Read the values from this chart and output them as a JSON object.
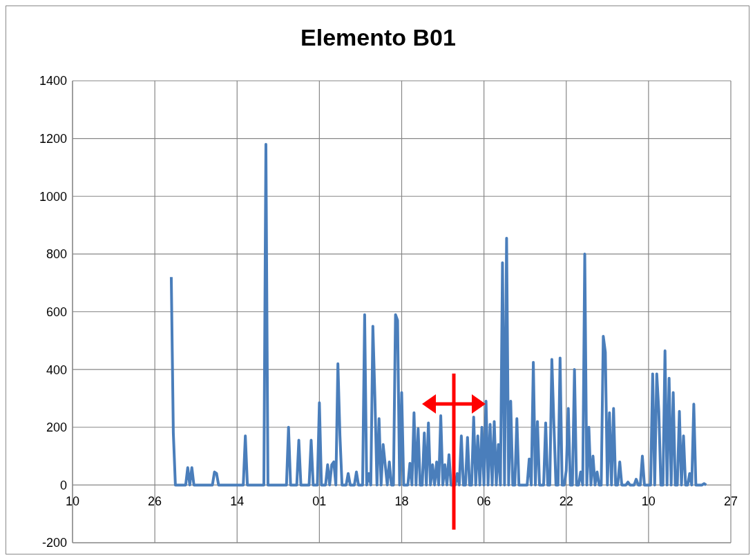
{
  "chart_data": {
    "type": "line",
    "title": "Elemento B01",
    "categories": [
      "10",
      null,
      null,
      null,
      null,
      null,
      null,
      null,
      null,
      null,
      null,
      null,
      null,
      null,
      null,
      null,
      null,
      null,
      null,
      null,
      null,
      null,
      null,
      null,
      null,
      null,
      null,
      null,
      null,
      null,
      null,
      null,
      null,
      null,
      null,
      null,
      null,
      null,
      null,
      null,
      "26",
      null,
      null,
      null,
      null,
      null,
      null,
      null,
      null,
      null,
      null,
      null,
      null,
      null,
      null,
      null,
      null,
      null,
      null,
      null,
      null,
      null,
      null,
      null,
      null,
      null,
      null,
      null,
      null,
      null,
      null,
      null,
      null,
      null,
      null,
      null,
      null,
      null,
      null,
      null,
      "14",
      null,
      null,
      null,
      null,
      null,
      null,
      null,
      null,
      null,
      null,
      null,
      null,
      null,
      null,
      null,
      null,
      null,
      null,
      null,
      null,
      null,
      null,
      null,
      null,
      null,
      null,
      null,
      null,
      null,
      null,
      null,
      null,
      null,
      null,
      null,
      null,
      null,
      null,
      null,
      "01",
      null,
      null,
      null,
      null,
      null,
      null,
      null,
      null,
      null,
      null,
      null,
      null,
      null,
      null,
      null,
      null,
      null,
      null,
      null,
      null,
      null,
      null,
      null,
      null,
      null,
      null,
      null,
      null,
      null,
      null,
      null,
      null,
      null,
      null,
      null,
      null,
      null,
      null,
      null,
      "18",
      null,
      null,
      null,
      null,
      null,
      null,
      null,
      null,
      null,
      null,
      null,
      null,
      null,
      null,
      null,
      null,
      null,
      null,
      null,
      null,
      null,
      null,
      null,
      null,
      null,
      null,
      null,
      null,
      null,
      null,
      null,
      null,
      null,
      null,
      null,
      null,
      null,
      null,
      null,
      "06",
      null,
      null,
      null,
      null,
      null,
      null,
      null,
      null,
      null,
      null,
      null,
      null,
      null,
      null,
      null,
      null,
      null,
      null,
      null,
      null,
      null,
      null,
      null,
      null,
      null,
      null,
      null,
      null,
      null,
      null,
      null,
      null,
      null,
      null,
      null,
      null,
      null,
      null,
      null,
      "22",
      null,
      null,
      null,
      null,
      null,
      null,
      null,
      null,
      null,
      null,
      null,
      null,
      null,
      null,
      null,
      null,
      null,
      null,
      null,
      null,
      null,
      null,
      null,
      null,
      null,
      null,
      null,
      null,
      null,
      null,
      null,
      null,
      null,
      null,
      null,
      null,
      null,
      null,
      null,
      "10",
      null,
      null,
      null,
      null,
      null,
      null,
      null,
      null,
      null,
      null,
      null,
      null,
      null,
      null,
      null,
      null,
      null,
      null,
      null,
      null,
      null,
      null,
      null,
      null,
      null,
      null,
      null,
      null,
      null,
      null,
      null,
      null,
      null,
      null,
      null,
      null,
      null,
      null,
      null,
      "27"
    ],
    "ylim": [
      -200,
      1400
    ],
    "yticks": [
      -200,
      0,
      200,
      400,
      600,
      800,
      1000,
      1200,
      1400
    ],
    "grid": true,
    "marker": "none",
    "line_style": "solid",
    "series": [
      {
        "color": "#4a7ebb",
        "values": [
          null,
          null,
          null,
          null,
          null,
          null,
          null,
          null,
          null,
          null,
          null,
          null,
          null,
          null,
          null,
          null,
          null,
          null,
          null,
          null,
          null,
          null,
          null,
          null,
          null,
          null,
          null,
          null,
          null,
          null,
          null,
          null,
          null,
          null,
          null,
          null,
          null,
          null,
          null,
          null,
          null,
          null,
          null,
          null,
          null,
          null,
          null,
          null,
          720,
          180,
          0,
          0,
          0,
          0,
          0,
          0,
          60,
          0,
          60,
          0,
          0,
          0,
          0,
          0,
          0,
          0,
          0,
          0,
          0,
          45,
          40,
          0,
          0,
          0,
          0,
          0,
          0,
          0,
          0,
          0,
          0,
          0,
          0,
          0,
          170,
          0,
          0,
          0,
          0,
          0,
          0,
          0,
          0,
          0,
          1180,
          0,
          0,
          0,
          0,
          0,
          0,
          0,
          0,
          0,
          0,
          200,
          0,
          0,
          0,
          0,
          155,
          0,
          0,
          0,
          0,
          0,
          155,
          0,
          0,
          0,
          285,
          0,
          0,
          0,
          70,
          0,
          70,
          80,
          0,
          420,
          170,
          0,
          0,
          0,
          40,
          0,
          0,
          0,
          45,
          0,
          0,
          0,
          590,
          0,
          40,
          0,
          550,
          300,
          0,
          230,
          0,
          140,
          70,
          0,
          80,
          0,
          0,
          590,
          570,
          0,
          320,
          0,
          0,
          0,
          75,
          0,
          250,
          0,
          195,
          0,
          0,
          180,
          0,
          215,
          0,
          70,
          0,
          80,
          0,
          240,
          0,
          70,
          0,
          105,
          0,
          0,
          0,
          40,
          0,
          170,
          0,
          0,
          165,
          0,
          0,
          235,
          0,
          170,
          0,
          200,
          0,
          290,
          0,
          210,
          0,
          220,
          0,
          140,
          0,
          770,
          0,
          855,
          0,
          290,
          0,
          0,
          230,
          0,
          0,
          0,
          0,
          0,
          90,
          0,
          425,
          0,
          220,
          0,
          0,
          0,
          215,
          0,
          0,
          435,
          210,
          0,
          0,
          440,
          0,
          0,
          50,
          265,
          0,
          0,
          400,
          0,
          0,
          45,
          0,
          800,
          0,
          200,
          0,
          100,
          0,
          45,
          0,
          0,
          515,
          460,
          0,
          250,
          0,
          265,
          0,
          0,
          80,
          0,
          0,
          0,
          10,
          0,
          0,
          0,
          20,
          0,
          0,
          100,
          0,
          0,
          0,
          0,
          385,
          0,
          385,
          255,
          0,
          0,
          465,
          0,
          370,
          0,
          320,
          0,
          0,
          255,
          0,
          170,
          0,
          0,
          40,
          0,
          280,
          0,
          0,
          0,
          0,
          5,
          0,
          null,
          null,
          null,
          null,
          null,
          null,
          null,
          null,
          null,
          null,
          null,
          null
        ]
      }
    ]
  }
}
